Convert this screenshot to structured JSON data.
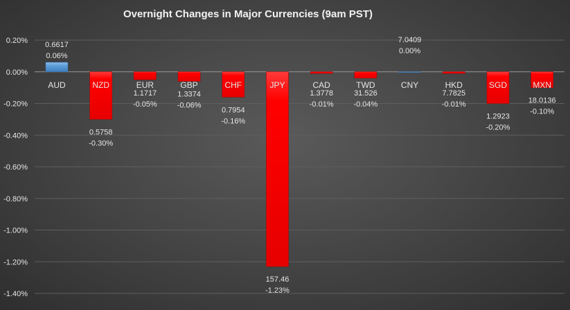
{
  "chart_data": {
    "type": "bar",
    "title": "Overnight Changes in Major Currencies (9am PST)",
    "categories": [
      "AUD",
      "NZD",
      "EUR",
      "GBP",
      "CHF",
      "JPY",
      "CAD",
      "TWD",
      "CNY",
      "HKD",
      "SGD",
      "MXN"
    ],
    "values": [
      0.06,
      -0.3,
      -0.05,
      -0.06,
      -0.16,
      -1.23,
      -0.01,
      -0.04,
      0.0,
      -0.01,
      -0.2,
      -0.1
    ],
    "value_labels": [
      "0.06%",
      "-0.30%",
      "-0.05%",
      "-0.06%",
      "-0.16%",
      "-1.23%",
      "-0.01%",
      "-0.04%",
      "0.00%",
      "-0.01%",
      "-0.20%",
      "-0.10%"
    ],
    "rates": [
      "0.6617",
      "0.5758",
      "1.1717",
      "1.3374",
      "0.7954",
      "157.46",
      "1.3778",
      "31.526",
      "7.0409",
      "7.7825",
      "1.2923",
      "18.0136"
    ],
    "yunit": "%",
    "ylim": [
      -1.4,
      0.2
    ],
    "yticks": [
      "0.20%",
      "0.00%",
      "-0.20%",
      "-0.40%",
      "-0.60%",
      "-0.80%",
      "-1.00%",
      "-1.20%",
      "-1.40%"
    ],
    "ytick_values": [
      0.2,
      0,
      -0.2,
      -0.4,
      -0.6,
      -0.8,
      -1.0,
      -1.2,
      -1.4
    ],
    "grid": true,
    "colors": {
      "positive": "#5b9bd5",
      "negative": "#ff0000"
    }
  }
}
